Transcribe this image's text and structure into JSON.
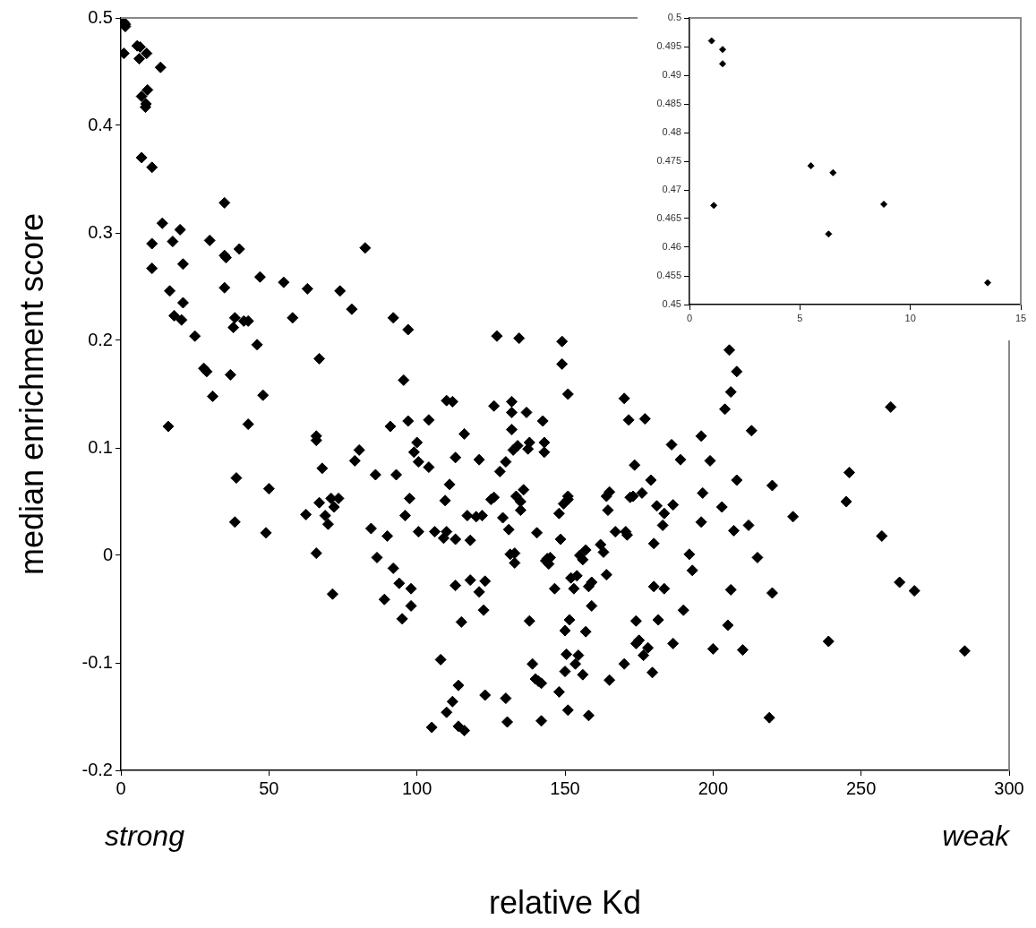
{
  "chart_data": [
    {
      "type": "scatter",
      "xlabel": "relative Kd",
      "ylabel": "median enrichment score",
      "annotations": [
        "strong",
        "weak"
      ],
      "color": "#000000",
      "marker": "diamond",
      "grid": false,
      "legend": false,
      "xlim": [
        0,
        300
      ],
      "xticks": [
        0,
        50,
        100,
        150,
        200,
        250,
        300
      ],
      "ylim": [
        -0.2,
        0.5
      ],
      "yticks": [
        -0.2,
        -0.1,
        0,
        0.1,
        0.2,
        0.3,
        0.4,
        0.5
      ],
      "x": [
        1,
        1.5,
        1.5,
        1,
        5.5,
        6.5,
        6.2,
        8.7,
        13.4,
        7,
        8.5,
        9,
        8.3,
        7,
        10.5,
        14,
        10.5,
        10.5,
        20,
        17.5,
        16.5,
        18,
        21,
        21,
        20.5,
        16,
        25,
        28,
        29,
        30,
        31,
        35,
        35,
        35.5,
        35,
        38,
        38.5,
        40,
        41.5,
        43,
        37,
        43,
        46,
        47,
        48,
        39,
        38.5,
        49,
        50,
        55,
        58,
        63,
        62.5,
        66,
        66,
        67,
        67,
        66,
        68,
        69,
        70,
        71,
        72,
        73.5,
        71.5,
        74,
        78,
        79,
        80.5,
        82.5,
        84.5,
        86,
        86.5,
        89,
        90,
        91,
        92,
        92,
        93,
        94,
        95,
        95.5,
        96,
        97,
        97,
        97.5,
        98,
        98,
        99,
        100,
        100.5,
        100.5,
        104,
        104,
        105,
        106,
        108,
        109,
        109.5,
        110,
        110,
        110,
        111,
        112,
        112,
        113,
        113,
        113,
        114,
        114,
        115,
        116,
        116,
        117,
        118,
        118,
        120,
        121,
        121,
        122,
        122.5,
        123,
        123,
        125,
        126,
        126,
        127,
        128,
        129,
        130,
        130,
        130.5,
        131,
        131.5,
        132,
        132,
        132,
        132.5,
        133,
        133,
        133.5,
        134,
        134.5,
        135,
        135,
        136,
        137,
        137.5,
        138,
        138,
        139,
        140,
        140.5,
        141,
        142,
        142,
        142.5,
        143,
        143,
        143.5,
        144,
        144.5,
        145,
        146.5,
        148,
        148,
        148.5,
        149,
        149,
        149.5,
        150,
        150,
        150.5,
        151,
        151,
        151,
        151,
        151.5,
        152,
        153,
        153.5,
        154,
        154.5,
        155,
        156,
        156,
        157,
        157,
        158,
        158,
        159,
        159,
        162,
        163,
        164,
        164,
        164.5,
        165,
        165,
        167,
        170,
        170,
        170.5,
        171,
        171.5,
        172,
        173,
        173.5,
        174,
        174,
        175,
        176,
        176.5,
        177,
        178,
        179,
        179.5,
        180,
        180,
        181,
        181.5,
        183,
        183.5,
        183.5,
        186,
        186.5,
        186.5,
        189,
        190,
        192,
        193,
        196,
        196,
        196.5,
        199,
        200,
        203,
        204,
        205,
        205.5,
        206,
        206,
        207,
        208,
        208,
        210,
        212,
        213,
        215,
        219,
        220,
        220,
        227,
        239,
        245,
        246,
        257,
        260,
        263,
        268,
        285
      ],
      "values": [
        0.496,
        0.494,
        0.492,
        0.467,
        0.474,
        0.473,
        0.462,
        0.467,
        0.454,
        0.427,
        0.42,
        0.433,
        0.417,
        0.37,
        0.361,
        0.309,
        0.29,
        0.267,
        0.303,
        0.292,
        0.246,
        0.223,
        0.271,
        0.235,
        0.219,
        0.12,
        0.204,
        0.174,
        0.171,
        0.293,
        0.148,
        0.328,
        0.279,
        0.277,
        0.249,
        0.212,
        0.221,
        0.285,
        0.218,
        0.218,
        0.168,
        0.122,
        0.196,
        0.259,
        0.149,
        0.072,
        0.031,
        0.021,
        0.062,
        0.254,
        0.221,
        0.248,
        0.038,
        0.111,
        0.107,
        0.183,
        0.049,
        0.002,
        0.081,
        0.037,
        0.029,
        0.053,
        0.045,
        0.053,
        -0.036,
        0.246,
        0.229,
        0.088,
        0.098,
        0.286,
        0.025,
        0.075,
        -0.002,
        -0.041,
        0.018,
        0.12,
        0.221,
        -0.012,
        0.075,
        -0.026,
        -0.059,
        0.163,
        0.037,
        0.21,
        0.125,
        0.053,
        -0.031,
        -0.047,
        0.096,
        0.105,
        0.087,
        0.022,
        0.082,
        0.126,
        -0.16,
        0.022,
        -0.097,
        0.016,
        0.051,
        0.144,
        0.022,
        -0.146,
        0.066,
        0.143,
        -0.136,
        0.091,
        0.015,
        -0.028,
        -0.121,
        -0.159,
        -0.062,
        0.113,
        -0.163,
        0.037,
        0.014,
        -0.023,
        0.036,
        0.089,
        -0.034,
        0.037,
        -0.051,
        -0.024,
        -0.13,
        0.052,
        0.139,
        0.054,
        0.204,
        0.078,
        0.035,
        0.087,
        -0.133,
        -0.155,
        0.024,
        0.001,
        0.133,
        0.117,
        0.143,
        0.098,
        -0.007,
        0.002,
        0.055,
        0.102,
        0.202,
        0.05,
        0.042,
        0.061,
        0.133,
        0.099,
        -0.061,
        0.105,
        -0.101,
        -0.115,
        0.021,
        -0.117,
        -0.119,
        -0.154,
        0.125,
        0.096,
        0.105,
        -0.005,
        -0.003,
        -0.008,
        -0.002,
        -0.031,
        0.039,
        -0.127,
        0.015,
        0.199,
        0.178,
        0.048,
        -0.108,
        -0.07,
        -0.092,
        0.052,
        0.055,
        0.15,
        -0.144,
        -0.06,
        -0.021,
        -0.031,
        -0.101,
        -0.019,
        -0.093,
        0,
        -0.111,
        -0.004,
        -0.071,
        0.005,
        -0.029,
        -0.149,
        -0.025,
        -0.047,
        0.01,
        0.003,
        -0.018,
        0.055,
        0.042,
        0.059,
        -0.116,
        0.022,
        0.146,
        -0.101,
        0.022,
        0.019,
        0.126,
        0.054,
        0.055,
        0.084,
        -0.061,
        -0.082,
        -0.079,
        0.058,
        -0.093,
        0.127,
        -0.086,
        0.07,
        -0.109,
        0.011,
        -0.029,
        0.046,
        -0.06,
        0.028,
        0.039,
        -0.031,
        0.103,
        0.047,
        -0.082,
        0.089,
        -0.051,
        0.001,
        -0.014,
        0.111,
        0.031,
        0.058,
        0.088,
        -0.087,
        0.045,
        0.136,
        -0.065,
        0.191,
        -0.032,
        0.152,
        0.023,
        0.171,
        0.07,
        -0.088,
        0.028,
        0.116,
        -0.002,
        -0.151,
        -0.035,
        0.065,
        0.036,
        -0.08,
        0.05,
        0.077,
        0.018,
        0.138,
        -0.025,
        -0.033,
        -0.089
      ]
    },
    {
      "type": "scatter",
      "color": "#000000",
      "marker": "diamond",
      "grid": false,
      "legend": false,
      "xlim": [
        0,
        15
      ],
      "xticks": [
        0,
        5,
        10,
        15
      ],
      "ylim": [
        0.45,
        0.5
      ],
      "yticks": [
        0.45,
        0.455,
        0.46,
        0.465,
        0.47,
        0.475,
        0.48,
        0.485,
        0.49,
        0.495,
        0.5
      ],
      "x": [
        1,
        1.5,
        1.5,
        1.1,
        5.5,
        6.5,
        6.3,
        8.8,
        13.5
      ],
      "values": [
        0.496,
        0.4945,
        0.492,
        0.4673,
        0.4742,
        0.473,
        0.4623,
        0.4675,
        0.4538
      ]
    }
  ]
}
